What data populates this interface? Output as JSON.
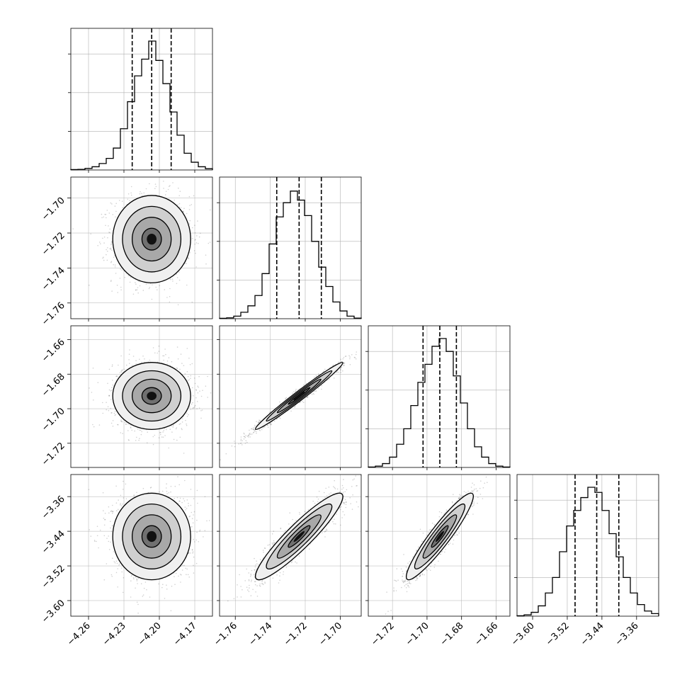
{
  "chart_data": {
    "type": "corner",
    "parameters": [
      {
        "range": [
          -4.275,
          -4.155
        ],
        "ticks": [
          -4.26,
          -4.23,
          -4.2,
          -4.17
        ],
        "tick_labels": [
          "−4.26",
          "−4.23",
          "−4.20",
          "−4.17"
        ],
        "quantiles": [
          -4.223,
          -4.2065,
          -4.19
        ]
      },
      {
        "range": [
          -1.769,
          -1.688
        ],
        "ticks": [
          -1.76,
          -1.74,
          -1.72,
          -1.7
        ],
        "tick_labels": [
          "−1.76",
          "−1.74",
          "−1.72",
          "−1.70"
        ],
        "quantiles": [
          -1.7363,
          -1.7235,
          -1.7108
        ]
      },
      {
        "range": [
          -1.734,
          -1.652
        ],
        "ticks": [
          -1.72,
          -1.7,
          -1.68,
          -1.66
        ],
        "tick_labels": [
          "−1.72",
          "−1.70",
          "−1.68",
          "−1.66"
        ],
        "quantiles": [
          -1.7023,
          -1.6926,
          -1.683
        ]
      },
      {
        "range": [
          -3.636,
          -3.309
        ],
        "ticks": [
          -3.6,
          -3.52,
          -3.44,
          -3.36
        ],
        "tick_labels": [
          "−3.60",
          "−3.52",
          "−3.44",
          "−3.36"
        ],
        "quantiles": [
          -3.502,
          -3.452,
          -3.401
        ]
      }
    ],
    "histograms": [
      [
        0.003,
        0.005,
        0.012,
        0.025,
        0.05,
        0.09,
        0.17,
        0.32,
        0.53,
        0.73,
        0.86,
        1.0,
        0.85,
        0.67,
        0.45,
        0.27,
        0.13,
        0.06,
        0.025,
        0.01
      ],
      [
        0.003,
        0.007,
        0.02,
        0.05,
        0.1,
        0.18,
        0.35,
        0.58,
        0.79,
        0.9,
        0.99,
        0.92,
        0.8,
        0.6,
        0.4,
        0.25,
        0.13,
        0.06,
        0.02,
        0.005
      ],
      [
        0.003,
        0.01,
        0.03,
        0.08,
        0.18,
        0.3,
        0.48,
        0.66,
        0.8,
        0.94,
        1.0,
        0.9,
        0.71,
        0.5,
        0.3,
        0.16,
        0.08,
        0.03,
        0.01,
        0.003
      ],
      [
        0.003,
        0.01,
        0.03,
        0.08,
        0.18,
        0.3,
        0.5,
        0.7,
        0.82,
        0.92,
        1.0,
        0.96,
        0.82,
        0.64,
        0.46,
        0.3,
        0.18,
        0.09,
        0.04,
        0.02
      ]
    ],
    "pairs": [
      {
        "row": 1,
        "col": 0,
        "mean": [
          -4.2065,
          -1.7235
        ],
        "sd": [
          0.0165,
          0.0125
        ],
        "corr": 0.0
      },
      {
        "row": 2,
        "col": 0,
        "mean": [
          -4.2065,
          -1.6926
        ],
        "sd": [
          0.0165,
          0.0097
        ],
        "corr": 0.0
      },
      {
        "row": 2,
        "col": 1,
        "mean": [
          -1.7235,
          -1.6926
        ],
        "sd": [
          0.0125,
          0.0097
        ],
        "corr": 0.985
      },
      {
        "row": 3,
        "col": 0,
        "mean": [
          -4.2065,
          -3.452
        ],
        "sd": [
          0.0165,
          0.05
        ],
        "corr": 0.0
      },
      {
        "row": 3,
        "col": 1,
        "mean": [
          -1.7235,
          -3.452
        ],
        "sd": [
          0.0125,
          0.05
        ],
        "corr": 0.92
      },
      {
        "row": 3,
        "col": 2,
        "mean": [
          -1.6926,
          -3.452
        ],
        "sd": [
          0.0097,
          0.05
        ],
        "corr": 0.93
      }
    ],
    "contour_levels_sigma": [
      0.5,
      1.0,
      1.5,
      2.0
    ],
    "grid": true,
    "colors": {
      "axes": "#000000",
      "grid": "#b0b0b0",
      "points": "#000000",
      "quantile_line": "#000000"
    }
  }
}
